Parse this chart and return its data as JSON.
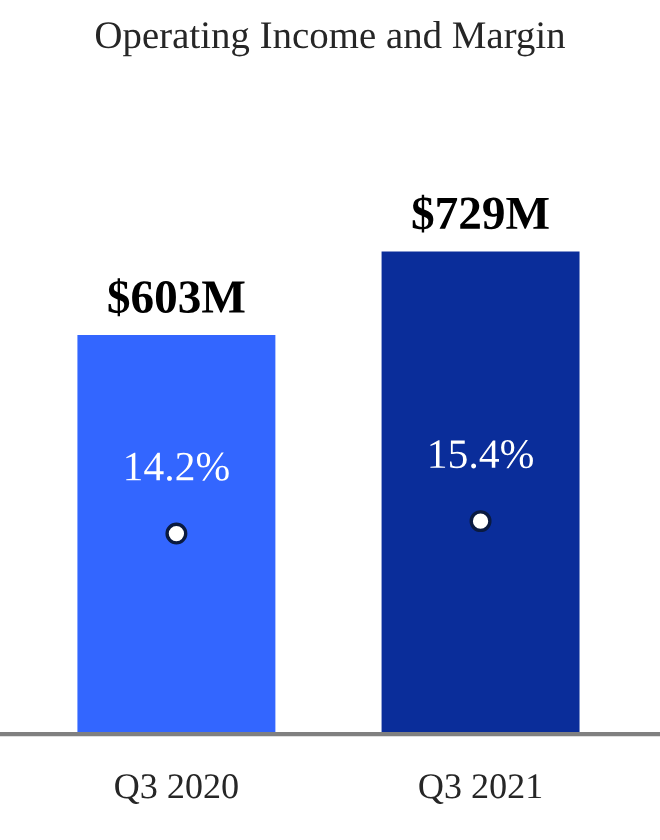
{
  "chart_data": {
    "type": "bar",
    "title": "Operating Income and Margin",
    "categories": [
      "Q3 2020",
      "Q3 2021"
    ],
    "series": [
      {
        "values": [
          603,
          729
        ],
        "colors": [
          "#3366ff",
          "#0a2d9a"
        ],
        "value_labels": [
          "$603M",
          "$729M"
        ]
      },
      {
        "type": "scatter",
        "axis": "y2",
        "values": [
          14.2,
          15.4
        ],
        "color": "#ffffff",
        "marker": "circle",
        "value_labels": [
          "14.2%",
          "15.4%"
        ]
      }
    ],
    "tick_labels": "x",
    "grid": false,
    "legend": false
  }
}
